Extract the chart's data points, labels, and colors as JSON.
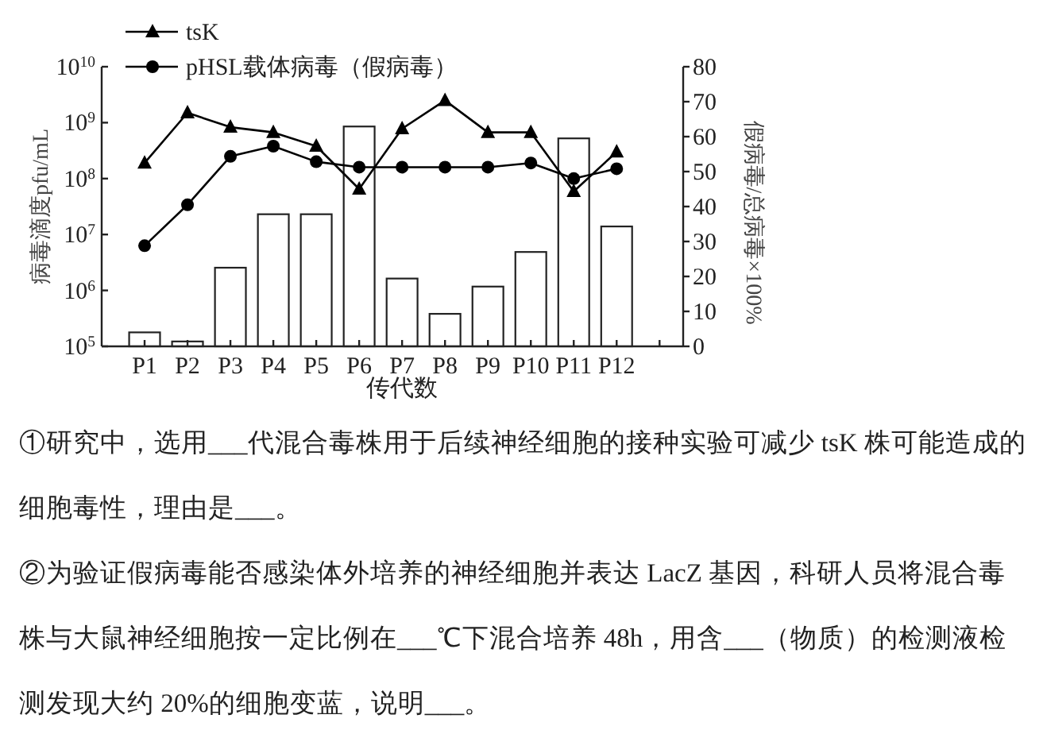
{
  "chart_data": {
    "type": "line",
    "xlabel": "传代数",
    "ylabel": "病毒滴度pfu/mL",
    "y2label": "假病毒/总病毒×100%",
    "categories": [
      "P1",
      "P2",
      "P3",
      "P4",
      "P5",
      "P6",
      "P7",
      "P8",
      "P9",
      "P10",
      "P11",
      "P12",
      null
    ],
    "series": [
      {
        "name": "tsK",
        "marker": "triangle",
        "color": "#000000",
        "values": [
          190000000,
          1500000000,
          830000000,
          670000000,
          380000000,
          65000000,
          780000000,
          2500000000,
          670000000,
          670000000,
          59000000,
          300000000,
          null
        ]
      },
      {
        "name": "pHSL载体病毒（假病毒）",
        "marker": "circle",
        "color": "#000000",
        "values": [
          6300000,
          34000000,
          250000000,
          380000000,
          200000000,
          160000000,
          160000000,
          160000000,
          160000000,
          190000000,
          100000000,
          150000000,
          null
        ]
      },
      {
        "type": "bar",
        "axis": "y2",
        "color": "#ffffff",
        "values": [
          4,
          1.4,
          22.5,
          37.8,
          37.8,
          62.9,
          19.4,
          9.3,
          17.1,
          27,
          59.5,
          34.3,
          null
        ]
      }
    ],
    "log": "y",
    "ylim": [
      100000,
      10000000000
    ],
    "yticks": [
      {
        "value": 100000,
        "label": "10$^{5}$"
      },
      {
        "value": 1000000,
        "label": "10$^{6}$"
      },
      {
        "value": 10000000,
        "label": "10$^{7}$"
      },
      {
        "value": 100000000,
        "label": "10$^{8}$"
      },
      {
        "value": 1000000000,
        "label": "10$^{9}$"
      },
      {
        "value": 10000000000,
        "label": "10$^{10}$"
      }
    ],
    "y2lim": [
      0,
      80
    ],
    "y2ticks": [
      0,
      10,
      20,
      30,
      40,
      50,
      60,
      70,
      80
    ],
    "legend": "top left",
    "annotations": [
      "①研究中，选用___代混合毒株用于后续神经细胞的接种实验可减少 tsK 株可能造成的细胞毒性，理由是___。",
      "②为验证假病毒能否感染体外培养的神经细胞并表达 LacZ 基因，科研人员将混合毒株与大鼠神经细胞按一定比例在___℃下混合培养 48h，用含___（物质）的检测液检测发现大约 20%的细胞变蓝，说明___。"
    ]
  }
}
